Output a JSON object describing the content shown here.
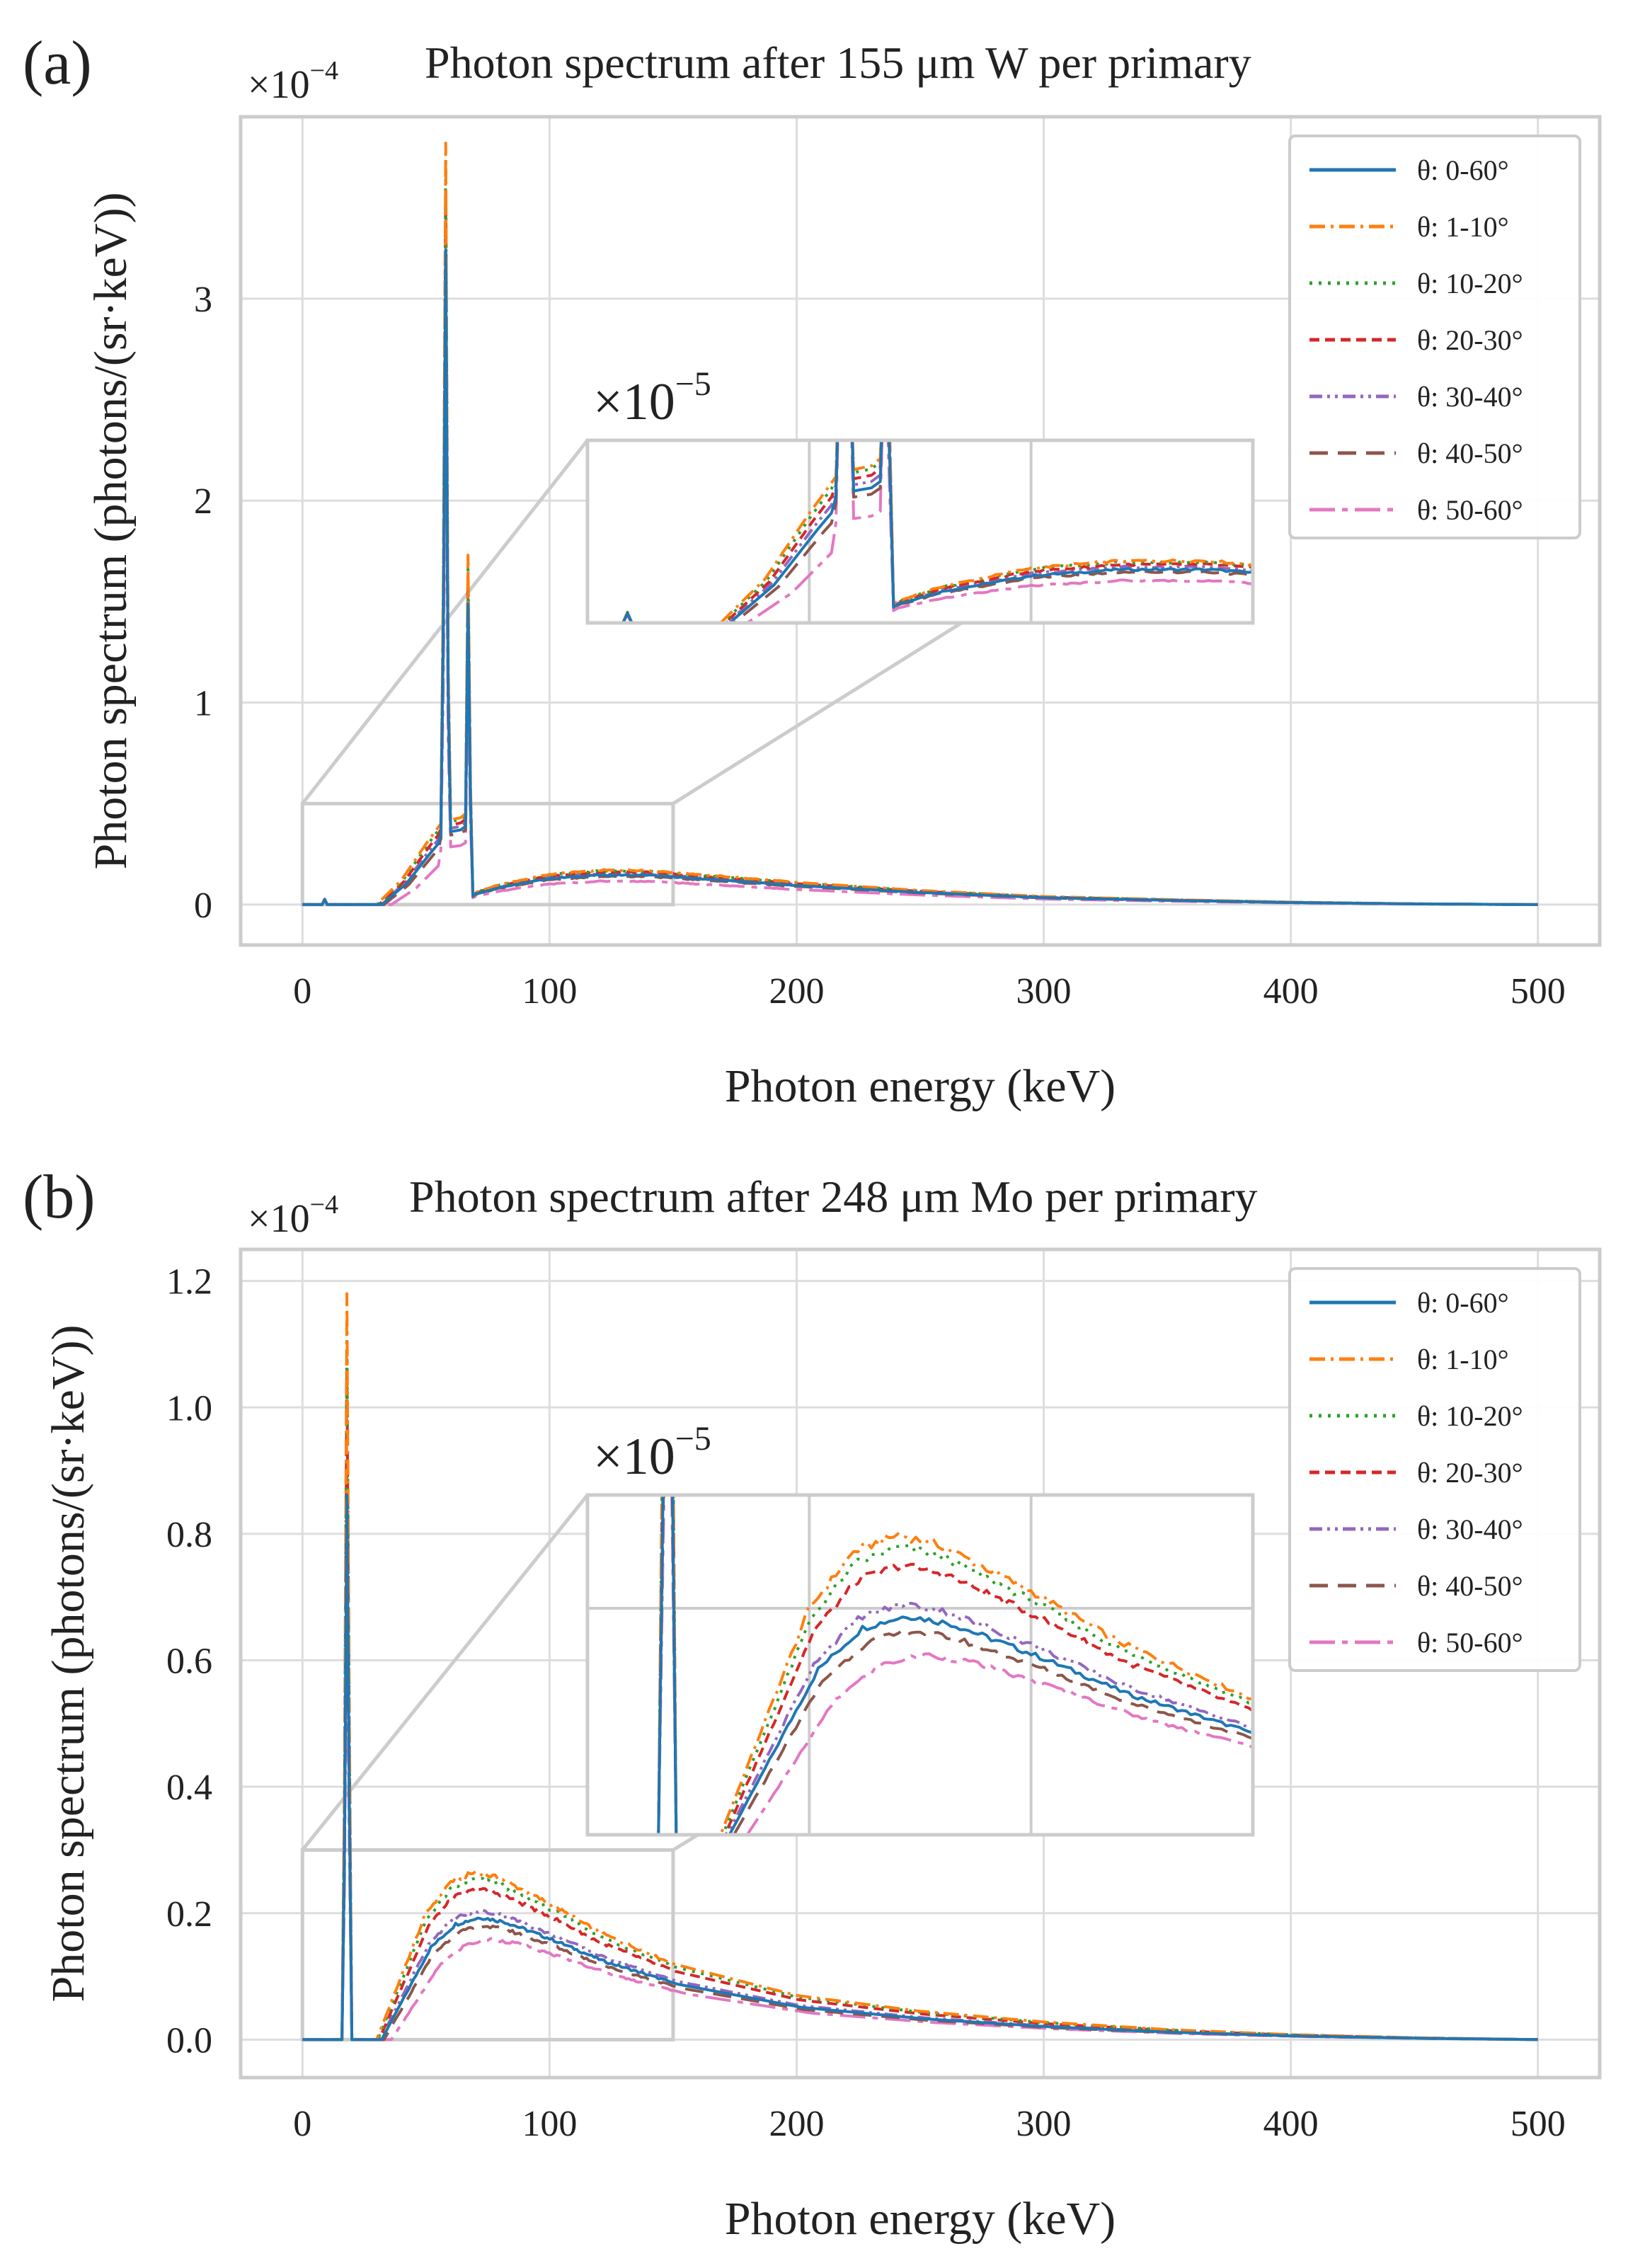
{
  "figure": {
    "theta_symbol": "θ",
    "colors": {
      "theta_0_60": "#1f77b4",
      "theta_1_10": "#ff7f0e",
      "theta_10_20": "#2ca02c",
      "theta_20_30": "#d62728",
      "theta_30_40": "#9467bd",
      "theta_40_50": "#8c564b",
      "theta_50_60": "#e377c2",
      "grid": "#dddddd",
      "frame": "#cccccc"
    }
  },
  "chart_data": [
    {
      "panel": "(a)",
      "type": "line",
      "title": "Photon spectrum after 155 μm W per primary",
      "multiplier": "×10",
      "multiplier_exp": "−4",
      "xlabel": "Photon energy (keV)",
      "ylabel": "Photon spectrum (photons/(sr·keV))",
      "xlim": [
        -25,
        525
      ],
      "ylim": [
        -0.2,
        3.9
      ],
      "xticks": [
        0,
        100,
        200,
        300,
        400,
        500
      ],
      "yticks": [
        0,
        1,
        2,
        3
      ],
      "ytick_labels": [
        "0",
        "1",
        "2",
        "3"
      ],
      "grid": true,
      "legend_loc": "top-right",
      "series": [
        {
          "name": "θ: 0-60°",
          "scale": 0.86
        },
        {
          "name": "θ: 1-10°",
          "scale": 1.0
        },
        {
          "name": "θ: 10-20°",
          "scale": 0.98
        },
        {
          "name": "θ: 20-30°",
          "scale": 0.94
        },
        {
          "name": "θ: 30-40°",
          "scale": 0.9
        },
        {
          "name": "θ: 40-50°",
          "scale": 0.82
        },
        {
          "name": "θ: 50-60°",
          "scale": 0.68
        }
      ],
      "curve_points_theta_1_10": {
        "x": [
          0,
          8,
          9,
          10,
          30,
          40,
          50,
          56,
          57,
          58,
          59,
          60,
          64,
          66,
          67,
          68,
          69,
          70,
          80,
          100,
          120,
          140,
          150,
          200,
          250,
          300,
          350,
          400,
          450,
          500
        ],
        "y": [
          0,
          0,
          0.03,
          0,
          0,
          0.12,
          0.3,
          0.4,
          1.6,
          3.77,
          1.2,
          0.42,
          0.43,
          0.45,
          1.73,
          0.6,
          0.05,
          0.06,
          0.1,
          0.15,
          0.17,
          0.17,
          0.16,
          0.11,
          0.07,
          0.04,
          0.025,
          0.012,
          0.004,
          0
        ]
      },
      "inset": {
        "multiplier": "×10",
        "multiplier_exp": "−5",
        "xlim": [
          0,
          150
        ],
        "ylim": [
          0,
          5
        ],
        "source_box": {
          "xlim": [
            0,
            150
          ],
          "ylim": [
            0,
            0.5
          ]
        }
      }
    },
    {
      "panel": "(b)",
      "type": "line",
      "title": "Photon spectrum after 248 μm Mo per primary",
      "multiplier": "×10",
      "multiplier_exp": "−4",
      "xlabel": "Photon energy (keV)",
      "ylabel": "Photon spectrum (photons/(sr·keV))",
      "xlim": [
        -25,
        525
      ],
      "ylim": [
        -0.06,
        1.25
      ],
      "xticks": [
        0,
        100,
        200,
        300,
        400,
        500
      ],
      "yticks": [
        0.0,
        0.2,
        0.4,
        0.6,
        0.8,
        1.0,
        1.2
      ],
      "ytick_labels": [
        "0.0",
        "0.2",
        "0.4",
        "0.6",
        "0.8",
        "1.0",
        "1.2"
      ],
      "grid": true,
      "legend_loc": "top-right",
      "series": [
        {
          "name": "θ: 0-60°",
          "scale": 0.73
        },
        {
          "name": "θ: 1-10°",
          "scale": 1.0
        },
        {
          "name": "θ: 10-20°",
          "scale": 0.96
        },
        {
          "name": "θ: 20-30°",
          "scale": 0.9
        },
        {
          "name": "θ: 30-40°",
          "scale": 0.77
        },
        {
          "name": "θ: 40-50°",
          "scale": 0.68
        },
        {
          "name": "θ: 50-60°",
          "scale": 0.6
        }
      ],
      "curve_points_theta_1_10": {
        "x": [
          0,
          16,
          17,
          18,
          19,
          20,
          30,
          40,
          50,
          60,
          70,
          80,
          90,
          100,
          120,
          150,
          200,
          250,
          300,
          350,
          400,
          450,
          500
        ],
        "y": [
          0,
          0,
          0.4,
          1.18,
          0.5,
          0,
          0,
          0.1,
          0.2,
          0.25,
          0.265,
          0.255,
          0.235,
          0.215,
          0.17,
          0.12,
          0.07,
          0.045,
          0.028,
          0.016,
          0.008,
          0.003,
          0
        ]
      },
      "inset": {
        "multiplier": "×10",
        "multiplier_exp": "−5",
        "xlim": [
          0,
          150
        ],
        "ylim": [
          0,
          3
        ],
        "source_box": {
          "xlim": [
            0,
            150
          ],
          "ylim": [
            0,
            0.3
          ]
        }
      }
    }
  ]
}
